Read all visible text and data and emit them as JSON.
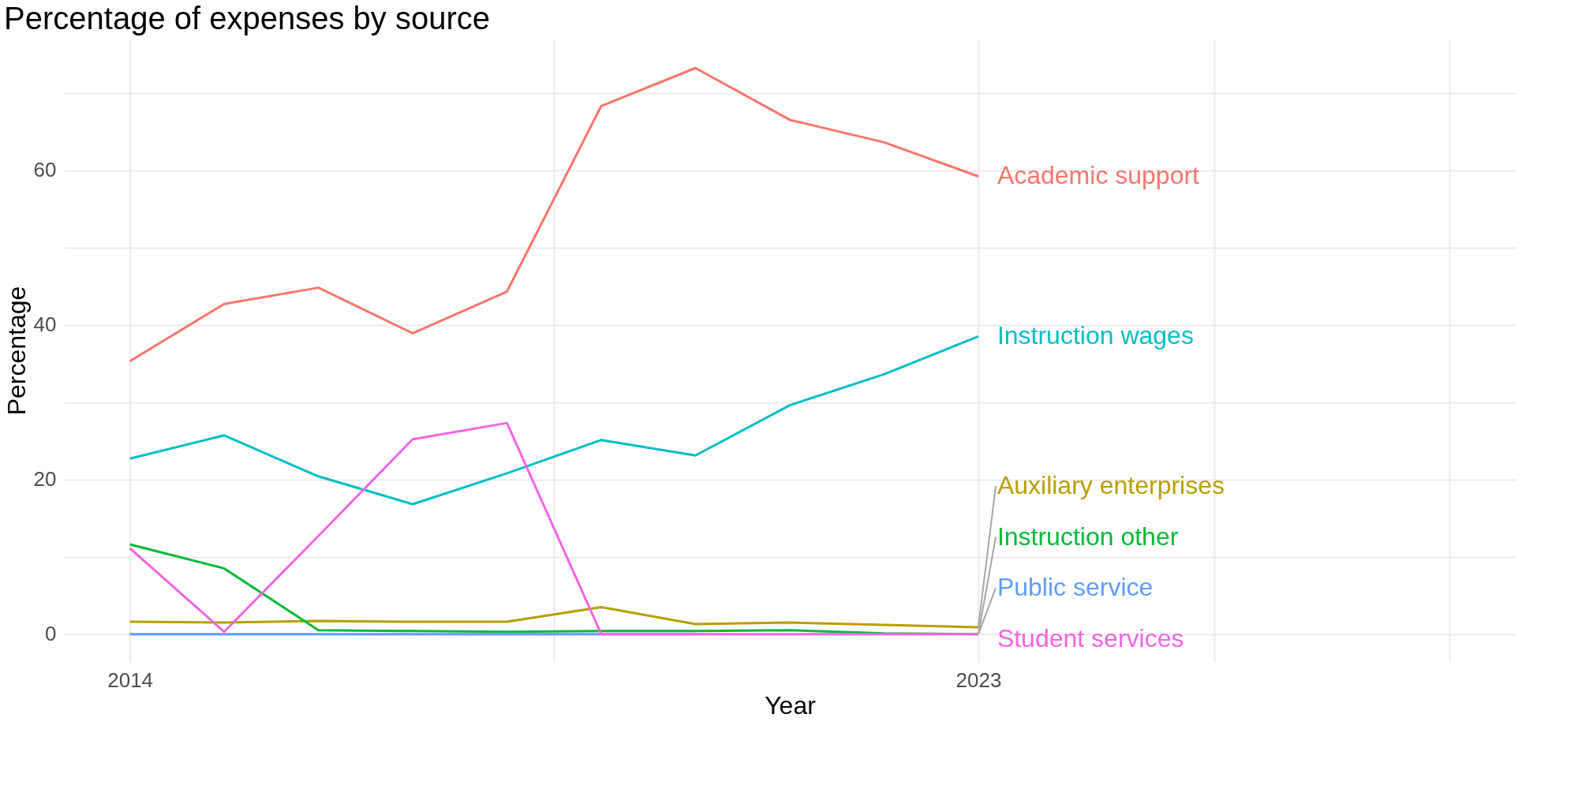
{
  "chart_data": {
    "type": "line",
    "title": "Percentage of expenses by source",
    "xlabel": "Year",
    "ylabel": "Percentage",
    "x": [
      2014,
      2015,
      2016,
      2017,
      2018,
      2019,
      2020,
      2021,
      2022,
      2023
    ],
    "xlim": [
      2013.3,
      2028.7
    ],
    "xticks": [
      2014,
      {
        "value": 2018.5,
        "label": null
      },
      2023,
      {
        "value": 2025.5,
        "label": null
      },
      {
        "value": 2028,
        "label": null
      }
    ],
    "ylim": [
      -3.6,
      77
    ],
    "yticks": [
      0,
      {
        "value": 10,
        "label": null
      },
      20,
      {
        "value": 30,
        "label": null
      },
      40,
      {
        "value": 50,
        "label": null
      },
      60,
      {
        "value": 70,
        "label": null
      }
    ],
    "grid": true,
    "legend": false,
    "marker": "none",
    "line_style": "solid",
    "series": [
      {
        "name": "Academic support",
        "color": "#f8766d",
        "values": [
          35.3,
          42.7,
          44.8,
          38.9,
          44.3,
          68.3,
          73.2,
          66.5,
          63.6,
          59.2
        ]
      },
      {
        "name": "Auxiliary enterprises",
        "color": "#b79f00",
        "values": [
          1.6,
          1.5,
          1.7,
          1.6,
          1.6,
          3.5,
          1.3,
          1.5,
          1.2,
          0.9
        ]
      },
      {
        "name": "Instruction other",
        "color": "#00ba38",
        "values": [
          11.6,
          8.5,
          0.5,
          0.4,
          0.3,
          0.4,
          0.4,
          0.5,
          0.1,
          0
        ]
      },
      {
        "name": "Instruction wages",
        "color": "#00bfc4",
        "values": [
          22.7,
          25.7,
          20.4,
          16.8,
          20.8,
          25.1,
          23.1,
          29.6,
          33.6,
          38.5
        ]
      },
      {
        "name": "Public service",
        "color": "#619cff",
        "values": [
          0,
          0,
          0,
          0,
          0,
          0,
          0,
          null,
          null,
          null
        ]
      },
      {
        "name": "Student services",
        "color": "#f564e3",
        "values": [
          11.1,
          0.3,
          12.7,
          25.2,
          27.3,
          0,
          0,
          0,
          0,
          0
        ]
      }
    ]
  }
}
